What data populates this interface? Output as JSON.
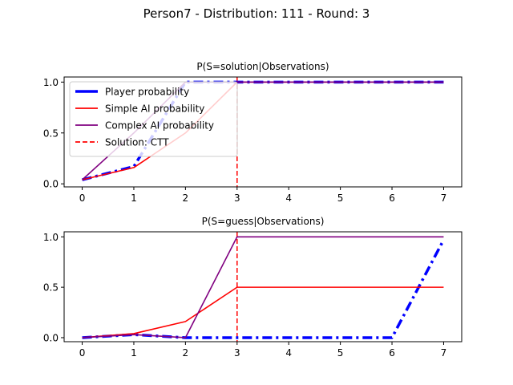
{
  "figure": {
    "title": "Person7 -  Distribution: 111 - Round: 3"
  },
  "chart_data": [
    {
      "type": "line",
      "title": "P(S=solution|Observations)",
      "xlabel": "",
      "ylabel": "",
      "x": [
        0,
        1,
        2,
        3,
        4,
        5,
        6,
        7
      ],
      "xlim": [
        -0.35,
        7.35
      ],
      "ylim": [
        -0.03,
        1.05
      ],
      "xticks": [
        "0",
        "1",
        "2",
        "3",
        "4",
        "5",
        "6",
        "7"
      ],
      "yticks": [
        "0.0",
        "0.5",
        "1.0"
      ],
      "grid": false,
      "legend_position": "upper-left",
      "vline": {
        "x": 3,
        "name": "Solution: CTT",
        "color": "#ff0000",
        "style": "dashed"
      },
      "series": [
        {
          "name": "Player probability",
          "color": "#0000ff",
          "style": "dashdot-thick",
          "values": [
            0.04,
            0.17,
            1.0,
            1.0,
            1.0,
            1.0,
            1.0,
            1.0
          ]
        },
        {
          "name": "Simple AI probability",
          "color": "#ff0000",
          "style": "solid",
          "values": [
            0.04,
            0.16,
            0.5,
            1.0,
            1.0,
            1.0,
            1.0,
            1.0
          ]
        },
        {
          "name": "Complex AI probability",
          "color": "#800080",
          "style": "solid",
          "values": [
            0.04,
            0.5,
            1.0,
            1.0,
            1.0,
            1.0,
            1.0,
            1.0
          ]
        }
      ]
    },
    {
      "type": "line",
      "title": "P(S=guess|Observations)",
      "xlabel": "",
      "ylabel": "",
      "x": [
        0,
        1,
        2,
        3,
        4,
        5,
        6,
        7
      ],
      "xlim": [
        -0.35,
        7.35
      ],
      "ylim": [
        -0.04,
        1.05
      ],
      "xticks": [
        "0",
        "1",
        "2",
        "3",
        "4",
        "5",
        "6",
        "7"
      ],
      "yticks": [
        "0.0",
        "0.5",
        "1.0"
      ],
      "grid": false,
      "vline": {
        "x": 3,
        "color": "#ff0000",
        "style": "dashed"
      },
      "series": [
        {
          "name": "Player probability",
          "color": "#0000ff",
          "style": "dashdot-thick",
          "values": [
            0.0,
            0.03,
            0.0,
            0.0,
            0.0,
            0.0,
            0.0,
            0.97
          ]
        },
        {
          "name": "Simple AI probability",
          "color": "#ff0000",
          "style": "solid",
          "values": [
            0.0,
            0.04,
            0.16,
            0.5,
            0.5,
            0.5,
            0.5,
            0.5
          ]
        },
        {
          "name": "Complex AI probability",
          "color": "#800080",
          "style": "solid",
          "values": [
            0.0,
            0.03,
            0.0,
            1.0,
            1.0,
            1.0,
            1.0,
            1.0
          ]
        }
      ]
    }
  ]
}
